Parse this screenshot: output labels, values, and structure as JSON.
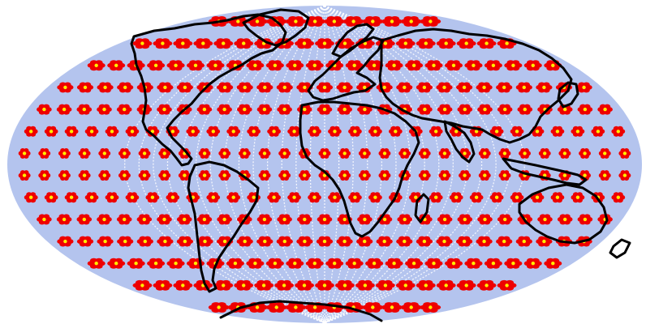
{
  "map": {
    "projection": "mollweide",
    "colors": {
      "background": "#ffffff",
      "ellipse_fill": "#b4c4ee",
      "meridian_lines": "#ffffff",
      "footprint_dots": "#ee0000",
      "center_dots": "#ffee00",
      "coastlines": "#000000"
    },
    "layers": [
      "ellipse-background-icon",
      "meridian-lines-icon",
      "footprint-dot-clusters-icon",
      "coastlines-icon"
    ]
  }
}
